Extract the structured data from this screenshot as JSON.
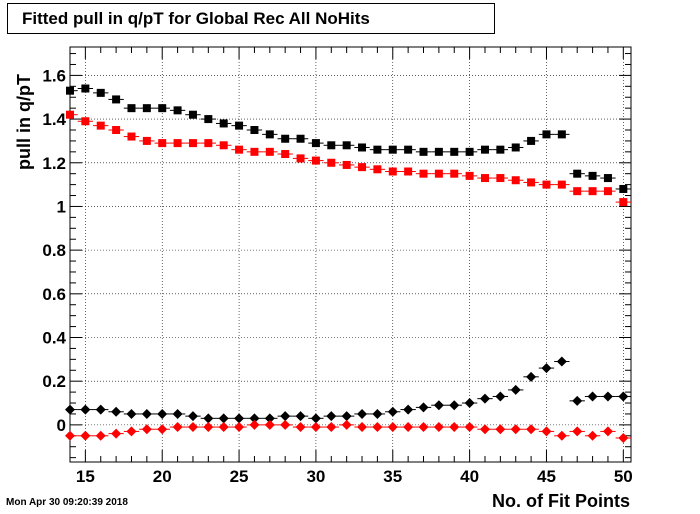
{
  "title": "Fitted pull in q/pT for Global Rec All NoHits",
  "timestamp": "Mon Apr 30 09:20:39 2018",
  "chart_data": {
    "type": "scatter",
    "xlabel": "No. of Fit Points",
    "ylabel": "pull in q/pT",
    "xlim": [
      14,
      50.5
    ],
    "ylim": [
      -0.17,
      1.73
    ],
    "xticks": [
      15,
      20,
      25,
      30,
      35,
      40,
      45,
      50
    ],
    "xtick_labels": [
      "15",
      "20",
      "25",
      "30",
      "35",
      "40",
      "45",
      "50"
    ],
    "yticks": [
      0,
      0.2,
      0.4,
      0.6,
      0.8,
      1,
      1.2,
      1.4,
      1.6
    ],
    "ytick_labels": [
      "0",
      "0.2",
      "0.4",
      "0.6",
      "0.8",
      "1",
      "1.2",
      "1.4",
      "1.6"
    ],
    "grid": true,
    "x": [
      14,
      15,
      16,
      17,
      18,
      19,
      20,
      21,
      22,
      23,
      24,
      25,
      26,
      27,
      28,
      29,
      30,
      31,
      32,
      33,
      34,
      35,
      36,
      37,
      38,
      39,
      40,
      41,
      42,
      43,
      44,
      45,
      46,
      47,
      48,
      49,
      50
    ],
    "series": [
      {
        "marker": "square",
        "color": "#000000",
        "values": [
          1.53,
          1.54,
          1.52,
          1.49,
          1.45,
          1.45,
          1.45,
          1.44,
          1.42,
          1.4,
          1.38,
          1.37,
          1.35,
          1.33,
          1.31,
          1.31,
          1.29,
          1.28,
          1.28,
          1.27,
          1.26,
          1.26,
          1.26,
          1.25,
          1.25,
          1.25,
          1.25,
          1.26,
          1.26,
          1.27,
          1.3,
          1.33,
          1.33,
          1.15,
          1.14,
          1.13,
          1.08
        ]
      },
      {
        "marker": "square",
        "color": "#ff0000",
        "values": [
          1.42,
          1.39,
          1.37,
          1.35,
          1.32,
          1.3,
          1.29,
          1.29,
          1.29,
          1.29,
          1.28,
          1.26,
          1.25,
          1.25,
          1.24,
          1.22,
          1.21,
          1.2,
          1.19,
          1.18,
          1.17,
          1.16,
          1.16,
          1.15,
          1.15,
          1.15,
          1.14,
          1.13,
          1.13,
          1.12,
          1.11,
          1.1,
          1.1,
          1.07,
          1.07,
          1.07,
          1.02
        ]
      },
      {
        "marker": "diamond",
        "color": "#000000",
        "values": [
          0.07,
          0.07,
          0.07,
          0.06,
          0.05,
          0.05,
          0.05,
          0.05,
          0.04,
          0.03,
          0.03,
          0.03,
          0.03,
          0.03,
          0.04,
          0.04,
          0.03,
          0.04,
          0.04,
          0.05,
          0.05,
          0.06,
          0.07,
          0.08,
          0.09,
          0.09,
          0.1,
          0.12,
          0.13,
          0.16,
          0.22,
          0.26,
          0.29,
          0.11,
          0.13,
          0.13,
          0.13
        ]
      },
      {
        "marker": "diamond",
        "color": "#ff0000",
        "values": [
          -0.05,
          -0.05,
          -0.05,
          -0.04,
          -0.03,
          -0.02,
          -0.02,
          -0.01,
          -0.01,
          -0.01,
          -0.01,
          -0.01,
          0.0,
          0.0,
          0.0,
          -0.01,
          -0.01,
          -0.01,
          0.0,
          -0.01,
          -0.01,
          -0.01,
          -0.01,
          -0.01,
          -0.01,
          -0.01,
          -0.01,
          -0.02,
          -0.02,
          -0.02,
          -0.02,
          -0.03,
          -0.05,
          -0.03,
          -0.05,
          -0.03,
          -0.06
        ]
      }
    ]
  }
}
